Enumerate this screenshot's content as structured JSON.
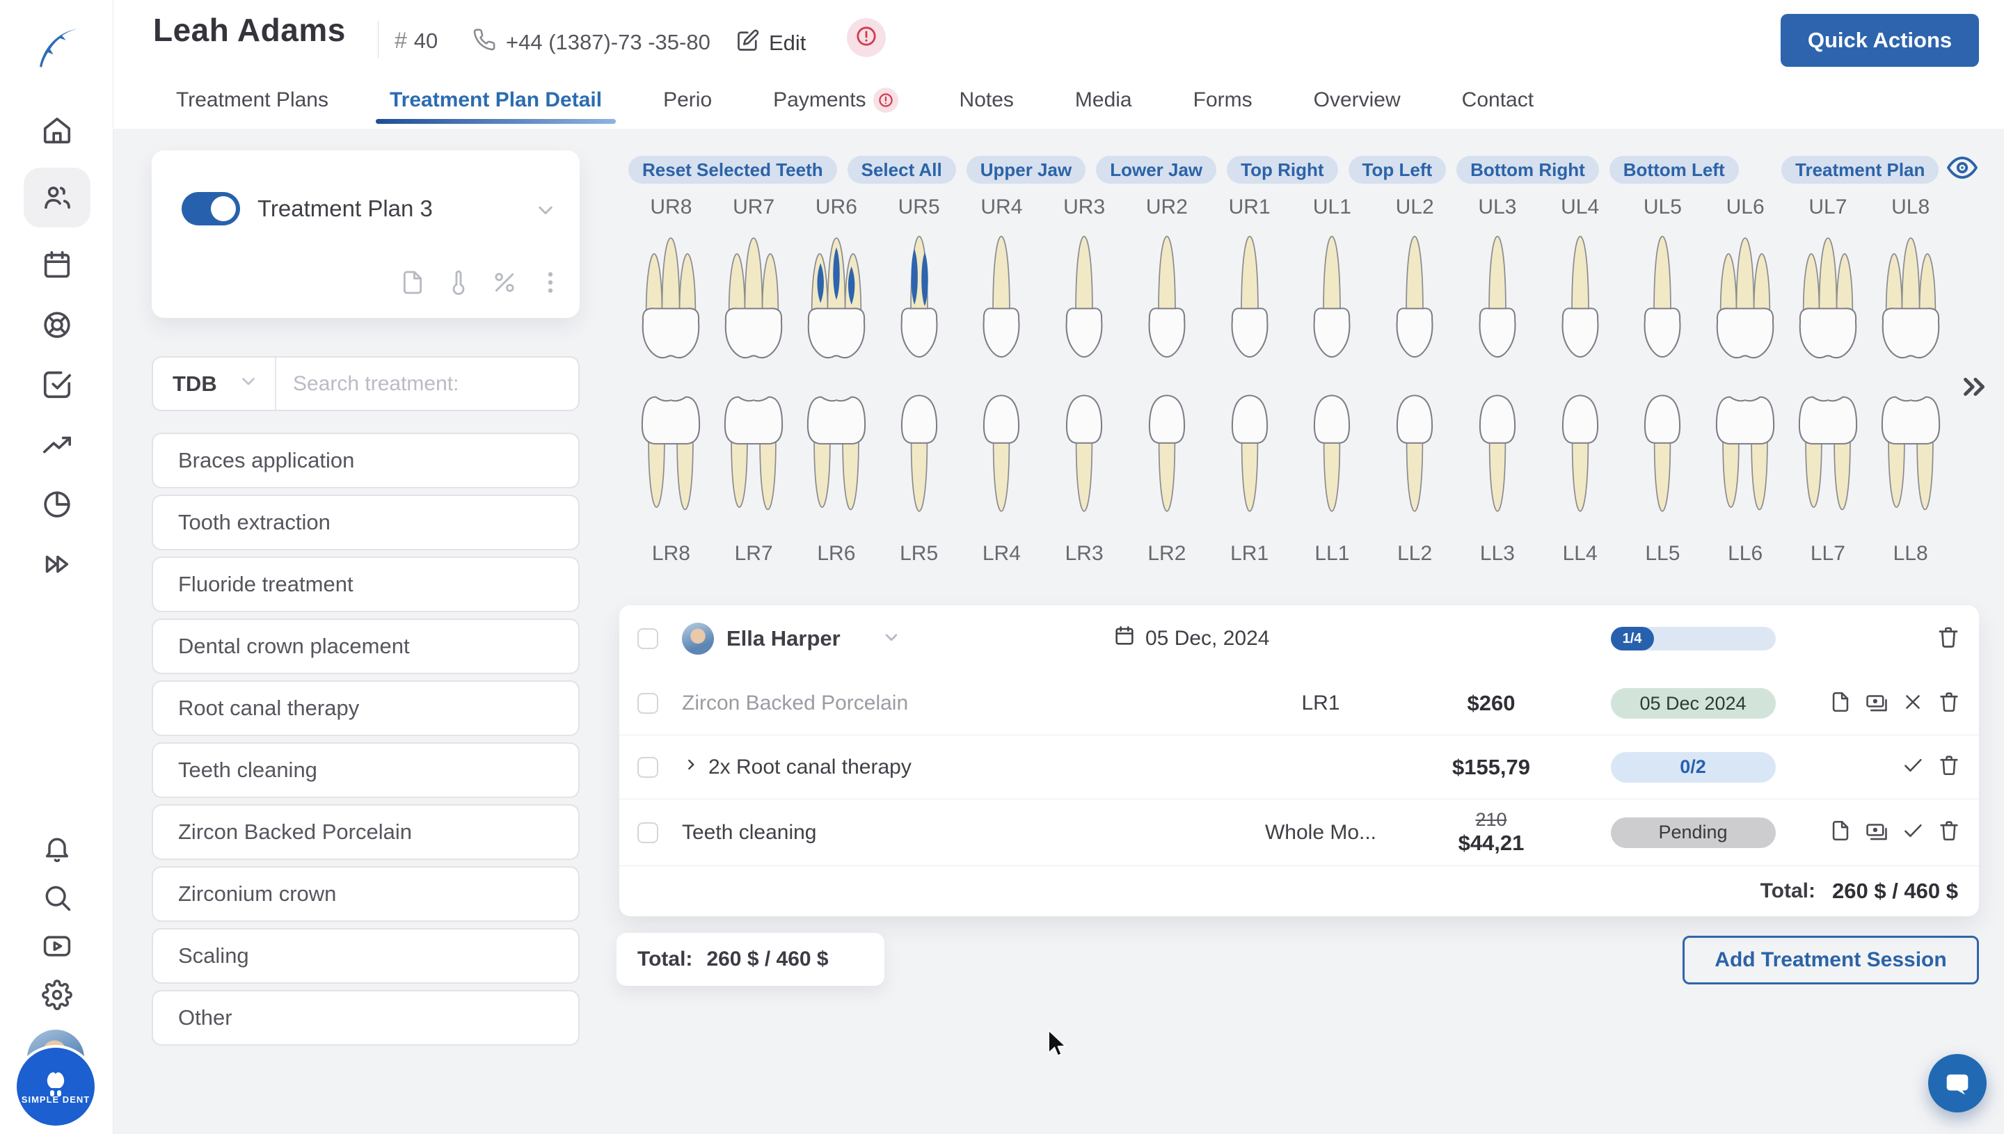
{
  "colors": {
    "primary": "#2d64ad",
    "tab_active": "#2b6cb0",
    "chip_bg": "#d7e0ee",
    "chip_text": "#2b63a8",
    "pill_green": "#d2e4d9",
    "pill_blue": "#d9e6f6",
    "pill_gray": "#cdcdcf",
    "canal_blue": "#2d64ad",
    "root_yellow": "#f1e9c5",
    "crown_white": "#fbfbfb"
  },
  "sidebar": {
    "logo_icon": "feather-logo-icon",
    "top_icons": [
      {
        "name": "home-icon",
        "active": false
      },
      {
        "name": "patients-icon",
        "active": true
      },
      {
        "name": "calendar-icon",
        "active": false
      },
      {
        "name": "support-icon",
        "active": false
      },
      {
        "name": "tasks-icon",
        "active": false
      },
      {
        "name": "analytics-icon",
        "active": false
      },
      {
        "name": "reports-icon",
        "active": false
      },
      {
        "name": "fast-forward-icon",
        "active": false
      }
    ],
    "bottom_icons": [
      {
        "name": "notifications-icon"
      },
      {
        "name": "search-icon"
      },
      {
        "name": "video-tutorials-icon"
      },
      {
        "name": "settings-icon"
      }
    ],
    "badge_label": "SIMPLE DENT"
  },
  "header": {
    "patient_name": "Leah Adams",
    "id_symbol": "#",
    "patient_id": "40",
    "phone": "+44 (1387)-73 -35-80",
    "edit_label": "Edit",
    "quick_actions_label": "Quick Actions"
  },
  "tabs": [
    {
      "label": "Treatment Plans",
      "active": false,
      "alert": false
    },
    {
      "label": "Treatment Plan Detail",
      "active": true,
      "alert": false
    },
    {
      "label": "Perio",
      "active": false,
      "alert": false
    },
    {
      "label": "Payments",
      "active": false,
      "alert": true
    },
    {
      "label": "Notes",
      "active": false,
      "alert": false
    },
    {
      "label": "Media",
      "active": false,
      "alert": false
    },
    {
      "label": "Forms",
      "active": false,
      "alert": false
    },
    {
      "label": "Overview",
      "active": false,
      "alert": false
    },
    {
      "label": "Contact",
      "active": false,
      "alert": false
    }
  ],
  "plan_card": {
    "title": "Treatment Plan 3",
    "toggle_on": true,
    "icons": [
      "file-icon",
      "thermometer-icon",
      "percent-icon",
      "kebab-icon"
    ]
  },
  "filter": {
    "selector_value": "TDB",
    "search_placeholder": "Search treatment:"
  },
  "treatments": [
    "Braces application",
    "Tooth extraction",
    "Fluoride treatment",
    "Dental crown placement",
    "Root canal therapy",
    "Teeth cleaning",
    "Zircon Backed Porcelain",
    "Zirconium crown",
    "Scaling",
    "Other"
  ],
  "teeth_chart": {
    "chips": [
      "Reset Selected Teeth",
      "Select All",
      "Upper Jaw",
      "Lower Jaw",
      "Top Right",
      "Top Left",
      "Bottom Right",
      "Bottom Left"
    ],
    "plan_chip": "Treatment Plan",
    "upper": [
      {
        "label": "UR8",
        "type": "molar3",
        "canals": 0
      },
      {
        "label": "UR7",
        "type": "molar3",
        "canals": 0
      },
      {
        "label": "UR6",
        "type": "molar3",
        "canals": 3
      },
      {
        "label": "UR5",
        "type": "single",
        "canals": 2
      },
      {
        "label": "UR4",
        "type": "single",
        "canals": 0
      },
      {
        "label": "UR3",
        "type": "single",
        "canals": 0
      },
      {
        "label": "UR2",
        "type": "single",
        "canals": 0
      },
      {
        "label": "UR1",
        "type": "single",
        "canals": 0
      },
      {
        "label": "UL1",
        "type": "single",
        "canals": 0
      },
      {
        "label": "UL2",
        "type": "single",
        "canals": 0
      },
      {
        "label": "UL3",
        "type": "single",
        "canals": 0
      },
      {
        "label": "UL4",
        "type": "single",
        "canals": 0
      },
      {
        "label": "UL5",
        "type": "single",
        "canals": 0
      },
      {
        "label": "UL6",
        "type": "molar3",
        "canals": 0
      },
      {
        "label": "UL7",
        "type": "molar3",
        "canals": 0
      },
      {
        "label": "UL8",
        "type": "molar3",
        "canals": 0
      }
    ],
    "lower": [
      {
        "label": "LR8",
        "type": "molar2"
      },
      {
        "label": "LR7",
        "type": "molar2"
      },
      {
        "label": "LR6",
        "type": "molar2"
      },
      {
        "label": "LR5",
        "type": "single"
      },
      {
        "label": "LR4",
        "type": "single"
      },
      {
        "label": "LR3",
        "type": "single"
      },
      {
        "label": "LR2",
        "type": "single"
      },
      {
        "label": "LR1",
        "type": "single"
      },
      {
        "label": "LL1",
        "type": "single"
      },
      {
        "label": "LL2",
        "type": "single"
      },
      {
        "label": "LL3",
        "type": "single"
      },
      {
        "label": "LL4",
        "type": "single"
      },
      {
        "label": "LL5",
        "type": "single"
      },
      {
        "label": "LL6",
        "type": "molar2"
      },
      {
        "label": "LL7",
        "type": "molar2"
      },
      {
        "label": "LL8",
        "type": "molar2"
      }
    ]
  },
  "session": {
    "patient": "Ella Harper",
    "date": "05 Dec, 2024",
    "progress": "1/4",
    "rows": [
      {
        "name": "Zircon Backed Porcelain",
        "muted": true,
        "expand": false,
        "tooth": "LR1",
        "old_price": "",
        "price": "$260",
        "badge": "05 Dec 2024",
        "badge_type": "green",
        "icons": [
          "file-icon",
          "cash-icon",
          "x-icon",
          "trash-icon"
        ]
      },
      {
        "name": "2x Root canal therapy",
        "muted": false,
        "expand": true,
        "tooth": "",
        "old_price": "",
        "price": "$155,79",
        "badge": "0/2",
        "badge_type": "blue",
        "icons": [
          "check-icon",
          "trash-icon"
        ]
      },
      {
        "name": "Teeth cleaning",
        "muted": false,
        "expand": false,
        "tooth": "Whole Mo...",
        "old_price": "210",
        "price": "$44,21",
        "badge": "Pending",
        "badge_type": "gray",
        "icons": [
          "file-icon",
          "cash-icon",
          "check-icon",
          "trash-icon"
        ]
      }
    ],
    "total_label": "Total:",
    "total_value": "260 $ / 460 $"
  },
  "footer": {
    "total_label": "Total:",
    "total_value": "260 $ / 460 $",
    "add_session_label": "Add Treatment Session"
  }
}
